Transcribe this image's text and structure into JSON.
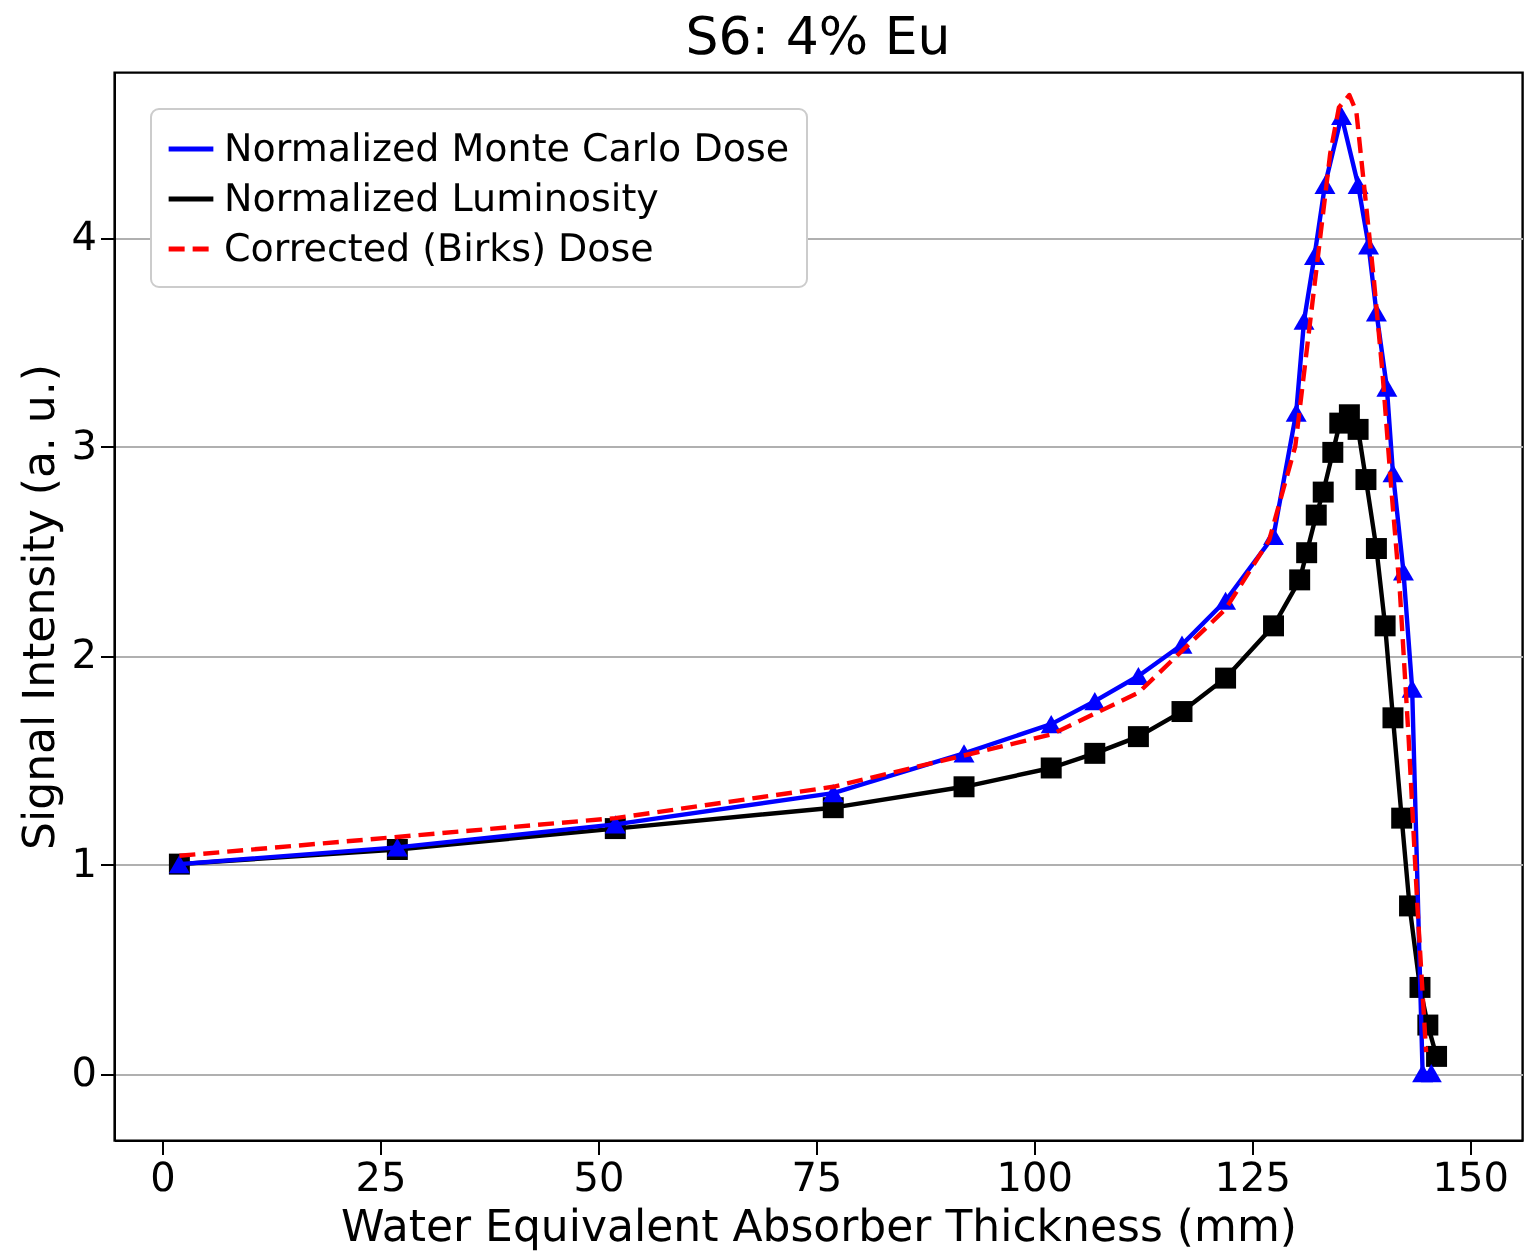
{
  "chart_data": {
    "type": "line",
    "title": "S6: 4% Eu",
    "xlabel": "Water Equivalent Absorber Thickness (mm)",
    "ylabel": "Signal Intensity (a. u.)",
    "xlim": [
      -5.5,
      156
    ],
    "ylim": [
      -0.32,
      4.79
    ],
    "xticks": [
      0,
      25,
      50,
      75,
      100,
      125,
      150
    ],
    "yticks": [
      0,
      1,
      2,
      3,
      4
    ],
    "grid": "y",
    "legend": "top left",
    "series": [
      {
        "name": "Normalized Monte Carlo Dose",
        "color": "#0000ff",
        "marker": "triangle",
        "line_style": "solid",
        "x": [
          2,
          27,
          52,
          77,
          92,
          102,
          107,
          112,
          117,
          122,
          127.5,
          130.1,
          131,
          132.2,
          133.4,
          135.3,
          137.2,
          138.4,
          139.3,
          140.5,
          141.2,
          142.4,
          143.4,
          144.6,
          145.6
        ],
        "values": [
          1.0,
          1.08,
          1.19,
          1.34,
          1.53,
          1.67,
          1.78,
          1.9,
          2.05,
          2.26,
          2.57,
          3.16,
          3.6,
          3.91,
          4.25,
          4.58,
          4.25,
          3.96,
          3.64,
          3.28,
          2.87,
          2.4,
          1.84,
          0.0,
          0.0
        ]
      },
      {
        "name": "Normalized Luminosity",
        "color": "#000000",
        "marker": "square",
        "line_style": "solid",
        "x": [
          2,
          27,
          52,
          77,
          92,
          102,
          107,
          112,
          117,
          122,
          127.5,
          130.5,
          131.3,
          132.4,
          133.2,
          134.3,
          135.1,
          136.2,
          137.2,
          138.1,
          139.3,
          140.3,
          141.2,
          142.2,
          143.1,
          144.3,
          145.2,
          146.2
        ],
        "values": [
          1.0,
          1.07,
          1.17,
          1.27,
          1.37,
          1.46,
          1.53,
          1.61,
          1.73,
          1.89,
          2.14,
          2.36,
          2.49,
          2.67,
          2.78,
          2.97,
          3.11,
          3.15,
          3.08,
          2.84,
          2.51,
          2.14,
          1.7,
          1.22,
          0.8,
          0.41,
          0.23,
          0.08
        ]
      },
      {
        "name": "Corrected (Birks) Dose",
        "color": "#ff0000",
        "marker": "none",
        "line_style": "dashed",
        "x": [
          2,
          27,
          52,
          77,
          102,
          112,
          122,
          127,
          130,
          132,
          134,
          135,
          136.2,
          137,
          138,
          139,
          140,
          141,
          142,
          143,
          144,
          145
        ],
        "values": [
          1.04,
          1.13,
          1.22,
          1.37,
          1.62,
          1.82,
          2.22,
          2.55,
          3.0,
          3.7,
          4.4,
          4.62,
          4.68,
          4.6,
          4.2,
          3.8,
          3.35,
          2.8,
          2.3,
          1.6,
          0.8,
          0.1
        ]
      }
    ]
  }
}
